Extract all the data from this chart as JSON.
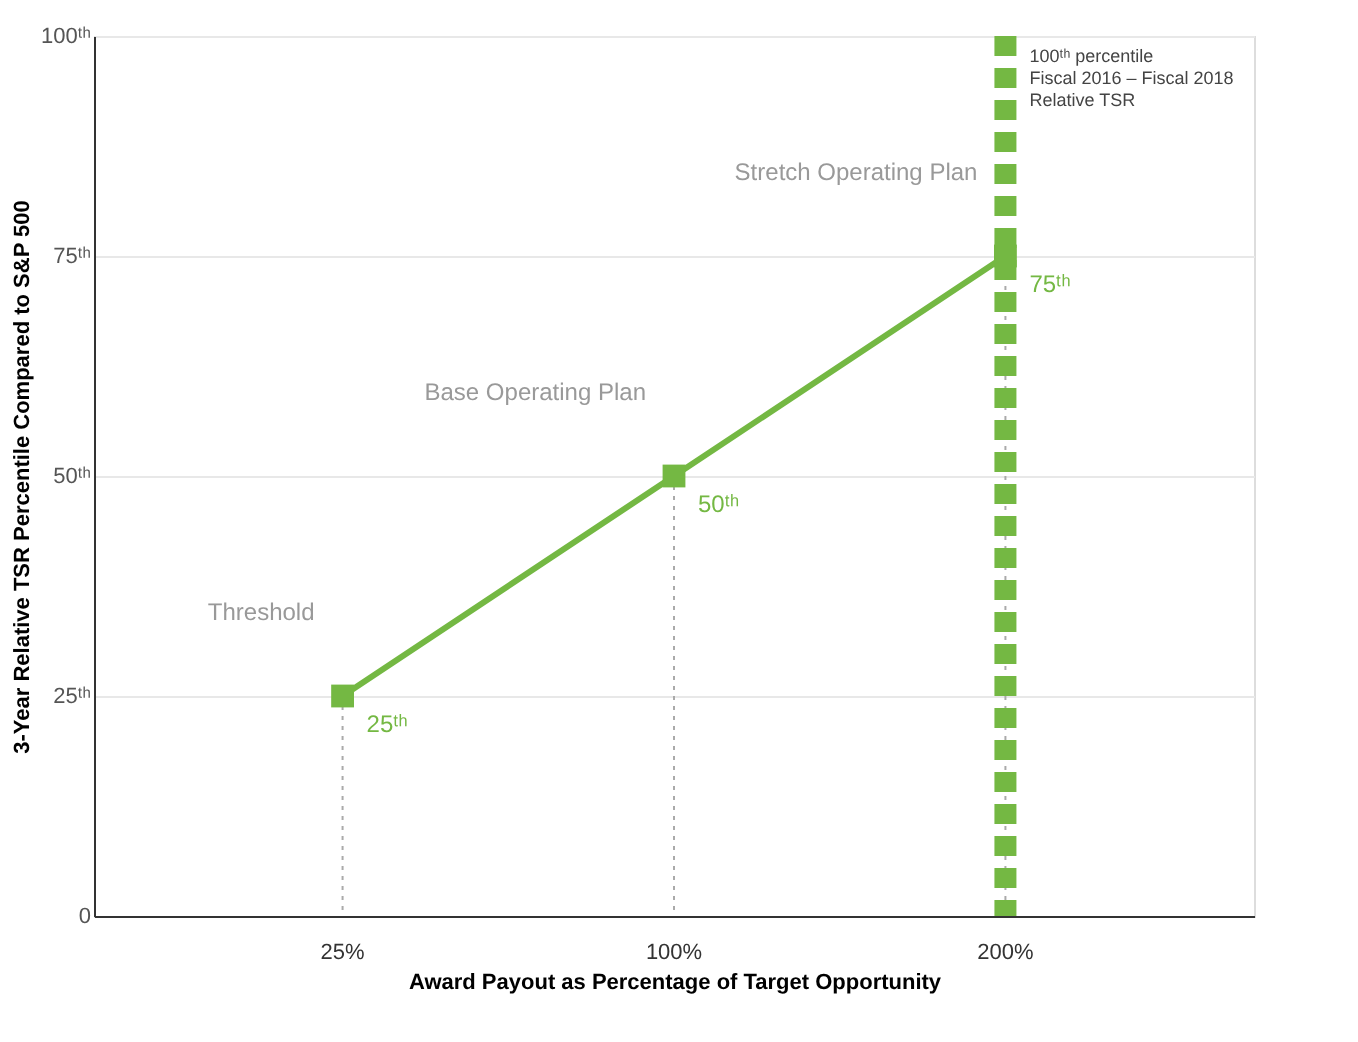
{
  "chart_data": {
    "type": "line",
    "xlabel": "Award Payout as Percentage of Target Opportunity",
    "ylabel": "3-Year Relative TSR Percentile Compared to S&P 500",
    "categories": [
      "25%",
      "100%",
      "200%"
    ],
    "series": [
      {
        "color": "#74b843",
        "values": [
          25,
          50,
          75
        ],
        "value_labels": [
          "25ᵗʰ",
          "50ᵗʰ",
          "75ᵗʰ"
        ]
      }
    ],
    "marker": "square",
    "ylim": [
      0,
      100
    ],
    "yticks": [
      0,
      {
        "value": 25,
        "label": "25ᵗʰ"
      },
      {
        "value": 50,
        "label": "50ᵗʰ"
      },
      {
        "value": 75,
        "label": "75ᵗʰ"
      },
      {
        "value": 100,
        "label": "100ᵗʰ"
      }
    ],
    "grid": "y",
    "annotations": [
      "Threshold",
      "Base Operating Plan",
      "Stretch Operating Plan"
    ],
    "ref_lines": [
      {
        "axis": "x",
        "value": "200%",
        "label": "100ᵗʰ percentile\nFiscal 2016 – Fiscal 2018\nRelative TSR",
        "color": "#74b843",
        "line_style": "dashed"
      }
    ]
  }
}
